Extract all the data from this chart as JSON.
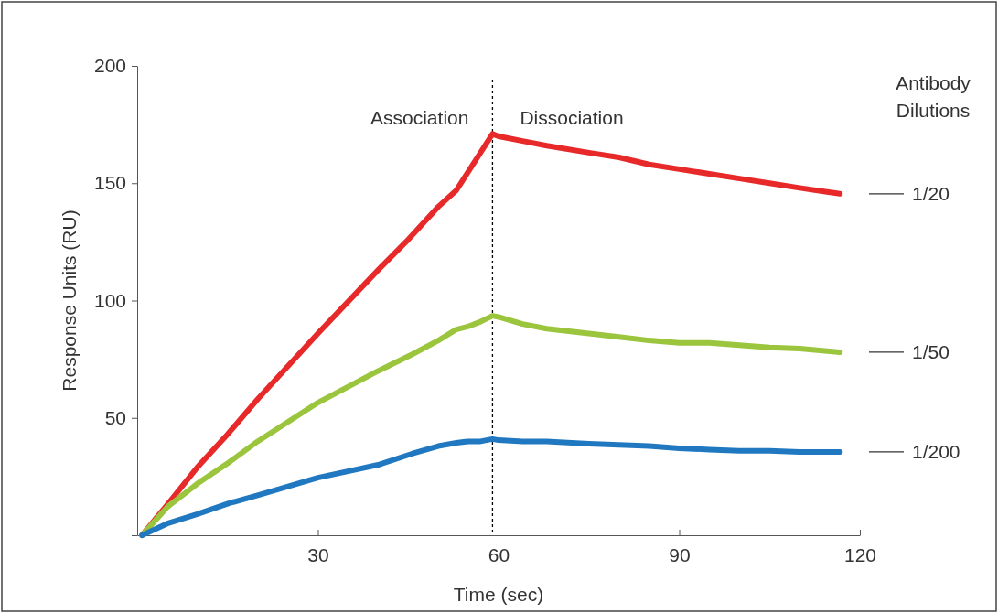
{
  "chart_data": {
    "type": "line",
    "xlabel": "Time (sec)",
    "ylabel": "Response Units (RU)",
    "legend_title": "Antibody Dilutions",
    "xlim": [
      0,
      120
    ],
    "ylim": [
      0,
      200
    ],
    "xticks": [
      {
        "value": 0,
        "label": null
      },
      30,
      60,
      90,
      120
    ],
    "yticks": [
      {
        "value": 0,
        "label": null
      },
      50,
      100,
      150,
      200
    ],
    "grid": false,
    "legend": "right",
    "marker": "none",
    "line_style": "solid",
    "annotations": [
      "Association",
      "Dissociation"
    ],
    "ref_lines": [
      {
        "axis": "x",
        "value": 59,
        "label": null,
        "color": "#000000",
        "line_style": "dotted"
      }
    ],
    "series": [
      {
        "name": "1/20",
        "color": "#e8292a",
        "x": [
          0.8,
          5,
          10,
          15,
          20,
          30,
          40,
          45,
          50,
          53,
          55,
          57,
          59,
          60,
          64,
          68,
          75,
          80,
          85,
          90,
          95,
          100,
          105,
          110,
          114,
          116.7
        ],
        "values": [
          0,
          13,
          29,
          43,
          58,
          86,
          113,
          126,
          140,
          147,
          155,
          163,
          171,
          170,
          168,
          166,
          163,
          161,
          158,
          156,
          154,
          152,
          150,
          148,
          146.5,
          145.5
        ]
      },
      {
        "name": "1/50",
        "color": "#9bc53d",
        "x": [
          0.8,
          5,
          10,
          15.2,
          20,
          30,
          40,
          45.6,
          50,
          53,
          55,
          57,
          59,
          60,
          64,
          68,
          75,
          80,
          85,
          90,
          95,
          100,
          105,
          110,
          116.7
        ],
        "values": [
          0,
          12,
          22,
          31,
          40,
          56.5,
          70,
          77,
          83,
          87.7,
          89,
          91,
          93.5,
          93,
          90,
          88,
          86,
          84.5,
          83,
          82,
          82,
          81,
          80,
          79.5,
          78
        ]
      },
      {
        "name": "1/200",
        "color": "#2079c0",
        "x": [
          0.8,
          5,
          10,
          15.2,
          20,
          30,
          40,
          45.6,
          50,
          53,
          55,
          57,
          59,
          60,
          64,
          68,
          75,
          80,
          85,
          90,
          95,
          100,
          105,
          110,
          116.7
        ],
        "values": [
          0,
          5,
          9,
          13.6,
          17,
          24.5,
          30,
          34.7,
          38,
          39.4,
          40,
          40,
          41,
          40.5,
          40,
          40,
          39,
          38.5,
          38,
          37,
          36.5,
          36,
          36,
          35.5,
          35.5
        ]
      }
    ]
  }
}
